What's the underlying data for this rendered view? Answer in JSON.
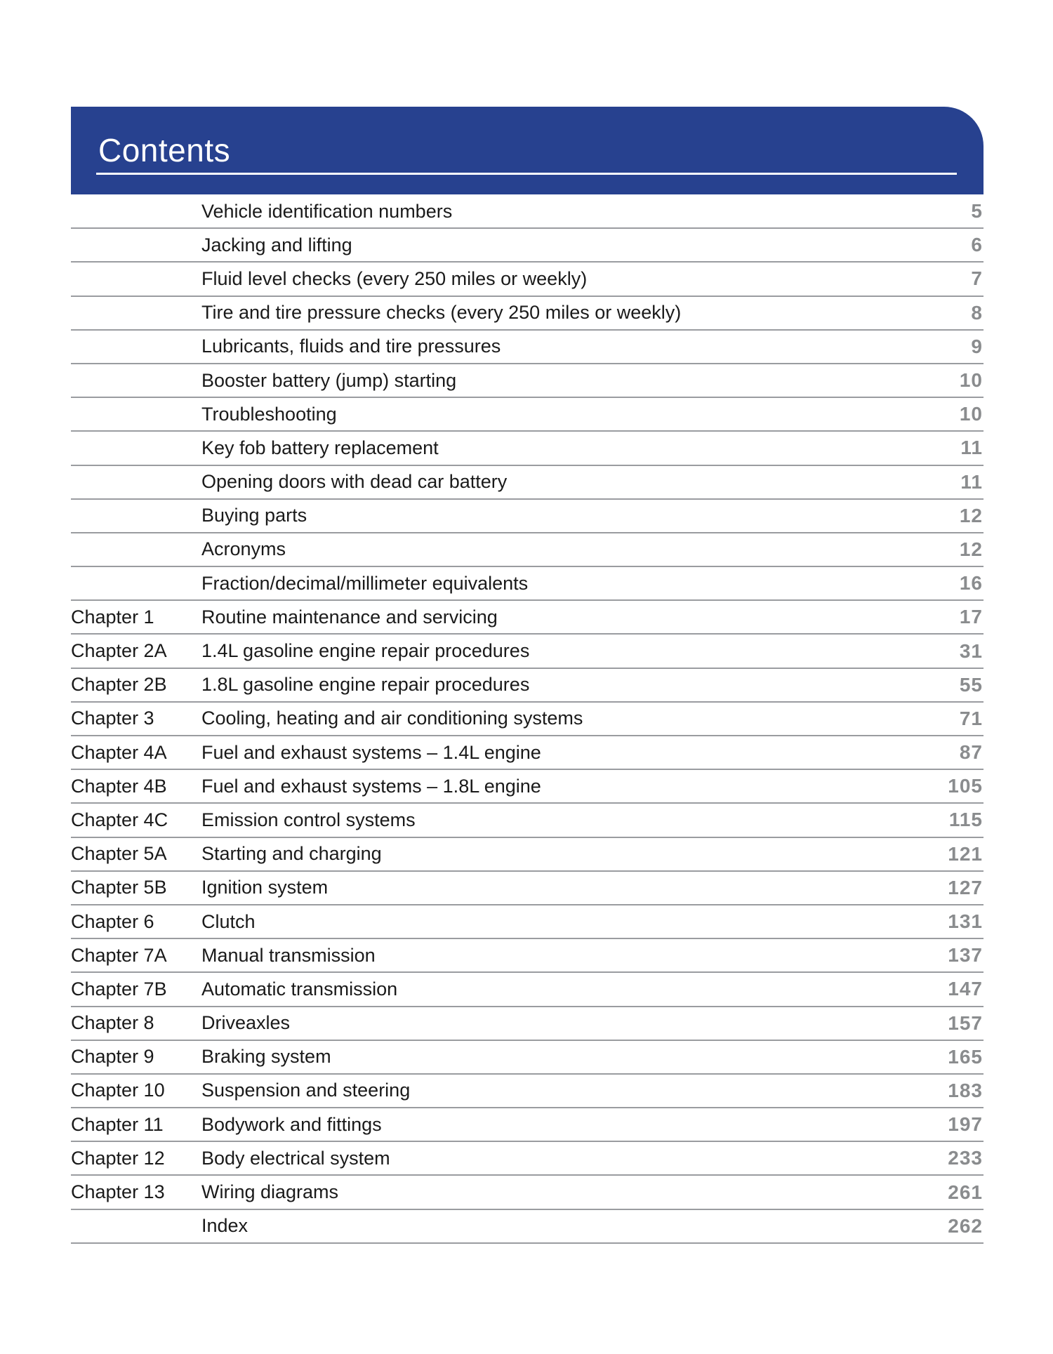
{
  "header": {
    "title": "Contents"
  },
  "toc": {
    "rows": [
      {
        "chapter": "",
        "title": "Vehicle identification numbers",
        "page": "5"
      },
      {
        "chapter": "",
        "title": "Jacking and lifting",
        "page": "6"
      },
      {
        "chapter": "",
        "title": "Fluid level checks (every 250 miles or weekly)",
        "page": "7"
      },
      {
        "chapter": "",
        "title": "Tire and tire pressure checks (every 250 miles or weekly)",
        "page": "8"
      },
      {
        "chapter": "",
        "title": "Lubricants, fluids and tire pressures",
        "page": "9"
      },
      {
        "chapter": "",
        "title": "Booster battery (jump) starting",
        "page": "10"
      },
      {
        "chapter": "",
        "title": "Troubleshooting",
        "page": "10"
      },
      {
        "chapter": "",
        "title": "Key fob battery replacement",
        "page": "11"
      },
      {
        "chapter": "",
        "title": "Opening doors with dead car battery",
        "page": "11"
      },
      {
        "chapter": "",
        "title": "Buying parts",
        "page": "12"
      },
      {
        "chapter": "",
        "title": "Acronyms",
        "page": "12"
      },
      {
        "chapter": "",
        "title": "Fraction/decimal/millimeter equivalents",
        "page": "16"
      },
      {
        "chapter": "Chapter 1",
        "title": "Routine maintenance and servicing",
        "page": "17"
      },
      {
        "chapter": "Chapter 2A",
        "title": "1.4L gasoline engine repair procedures",
        "page": "31"
      },
      {
        "chapter": "Chapter 2B",
        "title": "1.8L gasoline engine repair procedures",
        "page": "55"
      },
      {
        "chapter": "Chapter 3",
        "title": "Cooling, heating and air conditioning systems",
        "page": "71"
      },
      {
        "chapter": "Chapter 4A",
        "title": "Fuel and exhaust systems – 1.4L engine",
        "page": "87"
      },
      {
        "chapter": "Chapter 4B",
        "title": "Fuel and exhaust systems – 1.8L engine",
        "page": "105"
      },
      {
        "chapter": "Chapter 4C",
        "title": "Emission control systems",
        "page": "115"
      },
      {
        "chapter": "Chapter 5A",
        "title": "Starting and charging",
        "page": "121"
      },
      {
        "chapter": "Chapter 5B",
        "title": "Ignition system",
        "page": "127"
      },
      {
        "chapter": "Chapter 6",
        "title": "Clutch",
        "page": "131"
      },
      {
        "chapter": "Chapter 7A",
        "title": "Manual transmission",
        "page": "137"
      },
      {
        "chapter": "Chapter 7B",
        "title": "Automatic transmission",
        "page": "147"
      },
      {
        "chapter": "Chapter 8",
        "title": "Driveaxles",
        "page": "157"
      },
      {
        "chapter": "Chapter 9",
        "title": "Braking system",
        "page": "165"
      },
      {
        "chapter": "Chapter 10",
        "title": "Suspension and steering",
        "page": "183"
      },
      {
        "chapter": "Chapter 11",
        "title": "Bodywork and fittings",
        "page": "197"
      },
      {
        "chapter": "Chapter 12",
        "title": "Body electrical system",
        "page": "233"
      },
      {
        "chapter": "Chapter 13",
        "title": "Wiring diagrams",
        "page": "261"
      },
      {
        "chapter": "",
        "title": "Index",
        "page": "262"
      }
    ]
  },
  "colors": {
    "header_blue": "#27418f",
    "page_number_gray": "#8a8c8e",
    "divider_gray": "#9a9ca0",
    "text_black": "#1a1a1a"
  }
}
